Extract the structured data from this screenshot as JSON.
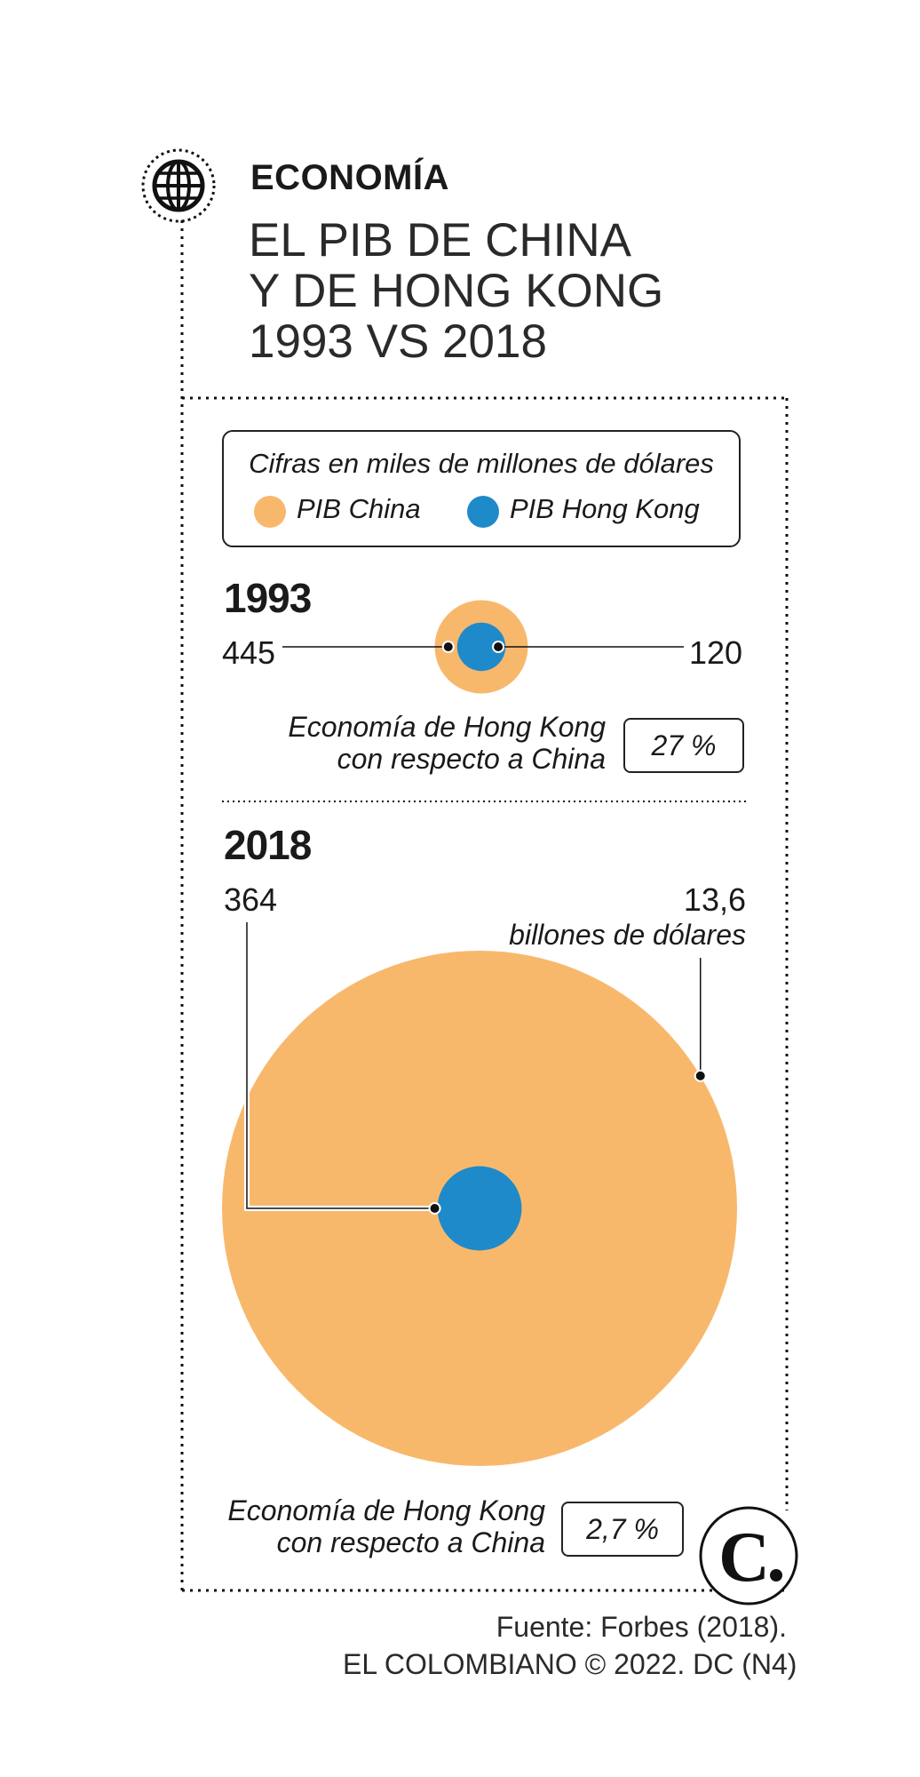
{
  "header": {
    "section": "ECONOMÍA",
    "title_lines": [
      "EL PIB DE CHINA",
      "Y DE HONG KONG",
      "1993 VS 2018"
    ]
  },
  "legend": {
    "note": "Cifras en miles de millones de dólares",
    "items": [
      {
        "label": "PIB China",
        "color": "#f8b86c"
      },
      {
        "label": "PIB Hong Kong",
        "color": "#1f8ac9"
      }
    ]
  },
  "panels": [
    {
      "year": "1993",
      "china_label": "445",
      "hk_label": "120",
      "ratio_text": [
        "Economía de Hong Kong",
        "con respecto a China"
      ],
      "ratio_value": "27 %"
    },
    {
      "year": "2018",
      "hk_label": "364",
      "china_label": "13,6",
      "china_unit": "billones de dólares",
      "ratio_text": [
        "Economía de Hong Kong",
        "con respecto a China"
      ],
      "ratio_value": "2,7 %"
    }
  ],
  "source": [
    "Fuente: Forbes (2018).",
    "EL COLOMBIANO © 2022. DC (N4)"
  ],
  "logo_letter": "C",
  "chart_data": {
    "type": "bubble",
    "unit": "miles de millones de dólares",
    "series": [
      {
        "name": "PIB China",
        "color": "#f8b86c",
        "values": {
          "1993": 445,
          "2018": 13600
        }
      },
      {
        "name": "PIB Hong Kong",
        "color": "#1f8ac9",
        "values": {
          "1993": 120,
          "2018": 364
        }
      }
    ],
    "hk_share_of_china_pct": {
      "1993": 27,
      "2018": 2.7
    }
  }
}
